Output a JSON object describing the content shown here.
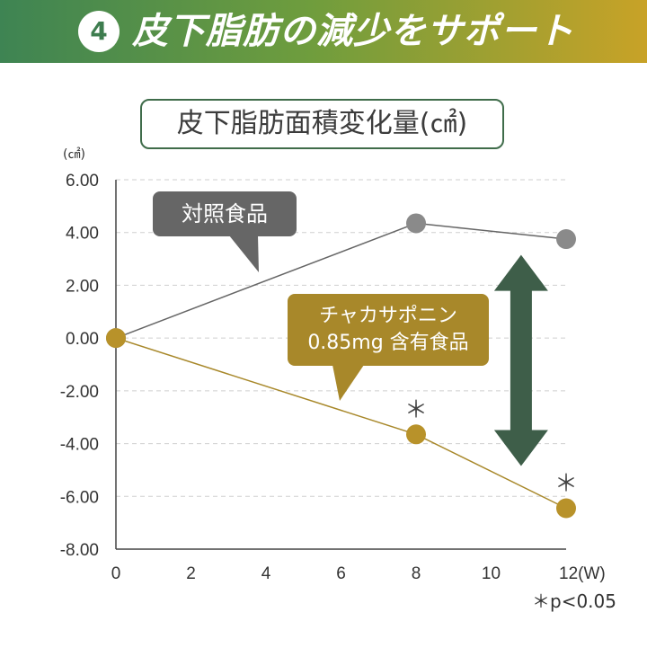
{
  "banner": {
    "badge_number": "4",
    "title": "皮下脂肪の減少をサポート",
    "gradient_colors": [
      "#3e8453",
      "#6f9d3d",
      "#c8a227"
    ]
  },
  "chart_data": {
    "type": "line",
    "title": "皮下脂肪面積変化量(㎠)",
    "y_unit": "(㎠)",
    "xlabel": "",
    "ylabel": "",
    "x_ticks": [
      "0",
      "2",
      "4",
      "6",
      "8",
      "10",
      "12(W)"
    ],
    "x_tick_values": [
      0,
      2,
      4,
      6,
      8,
      10,
      12
    ],
    "y_ticks": [
      "6.00",
      "4.00",
      "2.00",
      "0.00",
      "-2.00",
      "-4.00",
      "-6.00",
      "-8.00"
    ],
    "y_tick_values": [
      6,
      4,
      2,
      0,
      -2,
      -4,
      -6,
      -8
    ],
    "xlim": [
      0,
      12
    ],
    "ylim": [
      -8,
      6
    ],
    "grid": "horizontal dashed",
    "series": [
      {
        "name": "対照食品",
        "color": "#666666",
        "marker_color": "#8a8a8a",
        "x": [
          0,
          8,
          12
        ],
        "y": [
          0.0,
          4.35,
          3.75
        ]
      },
      {
        "name": "チャカサポニン 0.85mg 含有食品",
        "name_lines": [
          "チャカサポニン",
          "0.85mg 含有食品"
        ],
        "color": "#a8882a",
        "marker_color": "#b8922a",
        "x": [
          0,
          8,
          12
        ],
        "y": [
          0.0,
          -3.65,
          -6.45
        ],
        "significant": [
          false,
          true,
          true
        ]
      }
    ],
    "significance_marker": "＊",
    "footnote": "＊p<0.05",
    "difference_arrow_color": "#3e5e49"
  }
}
